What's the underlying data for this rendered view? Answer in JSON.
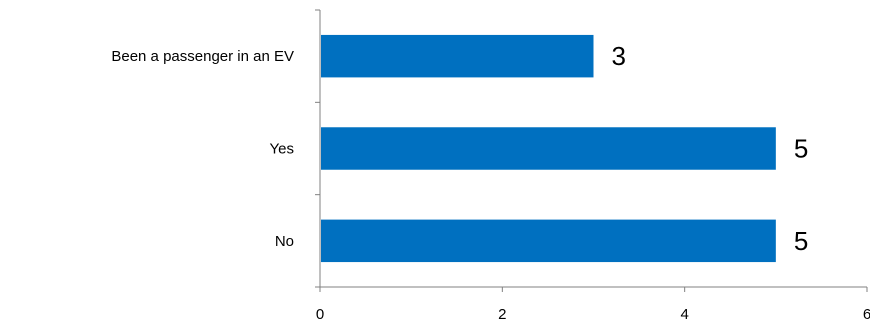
{
  "chart_data": {
    "type": "bar",
    "orientation": "horizontal",
    "categories": [
      "Been a passenger in an EV",
      "Yes",
      "No"
    ],
    "values": [
      3,
      5,
      5
    ],
    "data_labels": [
      "3",
      "5",
      "5"
    ],
    "x_ticks": [
      "0",
      "2",
      "4",
      "6"
    ],
    "xlim": [
      0,
      6
    ],
    "title": "",
    "xlabel": "",
    "ylabel": "",
    "grid": false,
    "legend": "none",
    "bar_color": "#0070C0"
  }
}
